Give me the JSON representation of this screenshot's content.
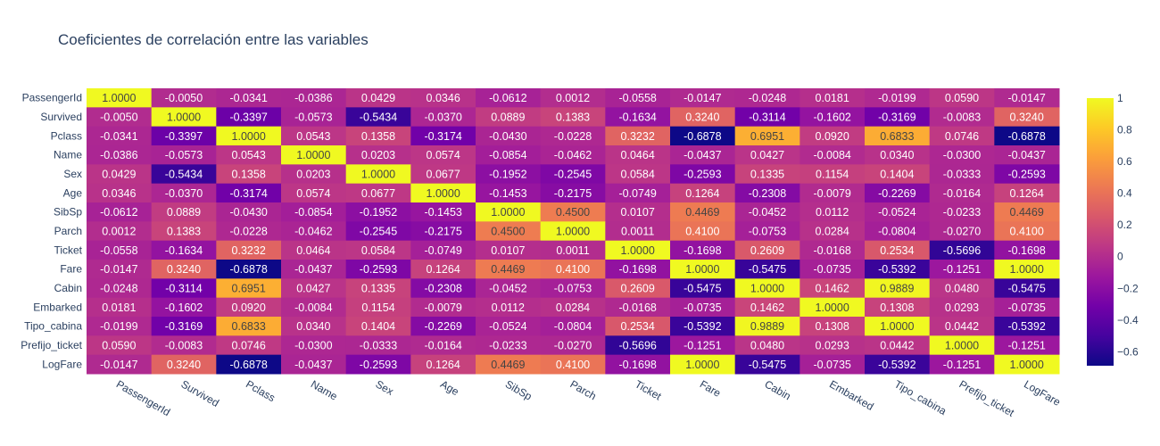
{
  "chart_data": {
    "type": "heatmap",
    "title": "Coeficientes de correlación entre las variables",
    "labels": [
      "PassengerId",
      "Survived",
      "Pclass",
      "Name",
      "Sex",
      "Age",
      "SibSp",
      "Parch",
      "Ticket",
      "Fare",
      "Cabin",
      "Embarked",
      "Tipo_cabina",
      "Prefijo_ticket",
      "LogFare"
    ],
    "values": [
      [
        1.0,
        -0.005,
        -0.0341,
        -0.0386,
        0.0429,
        0.0346,
        -0.0612,
        0.0012,
        -0.0558,
        -0.0147,
        -0.0248,
        0.0181,
        -0.0199,
        0.059,
        -0.0147
      ],
      [
        -0.005,
        1.0,
        -0.3397,
        -0.0573,
        -0.5434,
        -0.037,
        0.0889,
        0.1383,
        -0.1634,
        0.324,
        -0.3114,
        -0.1602,
        -0.3169,
        -0.0083,
        0.324
      ],
      [
        -0.0341,
        -0.3397,
        1.0,
        0.0543,
        0.1358,
        -0.3174,
        -0.043,
        -0.0228,
        0.3232,
        -0.6878,
        0.6951,
        0.092,
        0.6833,
        0.0746,
        -0.6878
      ],
      [
        -0.0386,
        -0.0573,
        0.0543,
        1.0,
        0.0203,
        0.0574,
        -0.0854,
        -0.0462,
        0.0464,
        -0.0437,
        0.0427,
        -0.0084,
        0.034,
        -0.03,
        -0.0437
      ],
      [
        0.0429,
        -0.5434,
        0.1358,
        0.0203,
        1.0,
        0.0677,
        -0.1952,
        -0.2545,
        0.0584,
        -0.2593,
        0.1335,
        0.1154,
        0.1404,
        -0.0333,
        -0.2593
      ],
      [
        0.0346,
        -0.037,
        -0.3174,
        0.0574,
        0.0677,
        1.0,
        -0.1453,
        -0.2175,
        -0.0749,
        0.1264,
        -0.2308,
        -0.0079,
        -0.2269,
        -0.0164,
        0.1264
      ],
      [
        -0.0612,
        0.0889,
        -0.043,
        -0.0854,
        -0.1952,
        -0.1453,
        1.0,
        0.45,
        0.0107,
        0.4469,
        -0.0452,
        0.0112,
        -0.0524,
        -0.0233,
        0.4469
      ],
      [
        0.0012,
        0.1383,
        -0.0228,
        -0.0462,
        -0.2545,
        -0.2175,
        0.45,
        1.0,
        0.0011,
        0.41,
        -0.0753,
        0.0284,
        -0.0804,
        -0.027,
        0.41
      ],
      [
        -0.0558,
        -0.1634,
        0.3232,
        0.0464,
        0.0584,
        -0.0749,
        0.0107,
        0.0011,
        1.0,
        -0.1698,
        0.2609,
        -0.0168,
        0.2534,
        -0.5696,
        -0.1698
      ],
      [
        -0.0147,
        0.324,
        -0.6878,
        -0.0437,
        -0.2593,
        0.1264,
        0.4469,
        0.41,
        -0.1698,
        1.0,
        -0.5475,
        -0.0735,
        -0.5392,
        -0.1251,
        1.0
      ],
      [
        -0.0248,
        -0.3114,
        0.6951,
        0.0427,
        0.1335,
        -0.2308,
        -0.0452,
        -0.0753,
        0.2609,
        -0.5475,
        1.0,
        0.1462,
        0.9889,
        0.048,
        -0.5475
      ],
      [
        0.0181,
        -0.1602,
        0.092,
        -0.0084,
        0.1154,
        -0.0079,
        0.0112,
        0.0284,
        -0.0168,
        -0.0735,
        0.1462,
        1.0,
        0.1308,
        0.0293,
        -0.0735
      ],
      [
        -0.0199,
        -0.3169,
        0.6833,
        0.034,
        0.1404,
        -0.2269,
        -0.0524,
        -0.0804,
        0.2534,
        -0.5392,
        0.9889,
        0.1308,
        1.0,
        0.0442,
        -0.5392
      ],
      [
        0.059,
        -0.0083,
        0.0746,
        -0.03,
        -0.0333,
        -0.0164,
        -0.0233,
        -0.027,
        -0.5696,
        -0.1251,
        0.048,
        0.0293,
        0.0442,
        1.0,
        -0.1251
      ],
      [
        -0.0147,
        0.324,
        -0.6878,
        -0.0437,
        -0.2593,
        0.1264,
        0.4469,
        0.41,
        -0.1698,
        1.0,
        -0.5475,
        -0.0735,
        -0.5392,
        -0.1251,
        1.0
      ]
    ],
    "colorscale": "Plasma",
    "colorscale_stops": [
      "#0d0887",
      "#46039f",
      "#7201a8",
      "#9c179e",
      "#bd3786",
      "#d8576b",
      "#ed7953",
      "#fb9f3a",
      "#fdca26",
      "#f0f921"
    ],
    "zrange": [
      -0.6878,
      1.0
    ],
    "colorbar_ticks": [
      1,
      0.8,
      0.6,
      0.4,
      0.2,
      0,
      -0.2,
      -0.4,
      -0.6
    ],
    "colorbar_tick_labels": [
      "1",
      "0.8",
      "0.6",
      "0.4",
      "0.2",
      "0",
      "−0.2",
      "−0.4",
      "−0.6"
    ],
    "text_format": "4 decimals"
  }
}
